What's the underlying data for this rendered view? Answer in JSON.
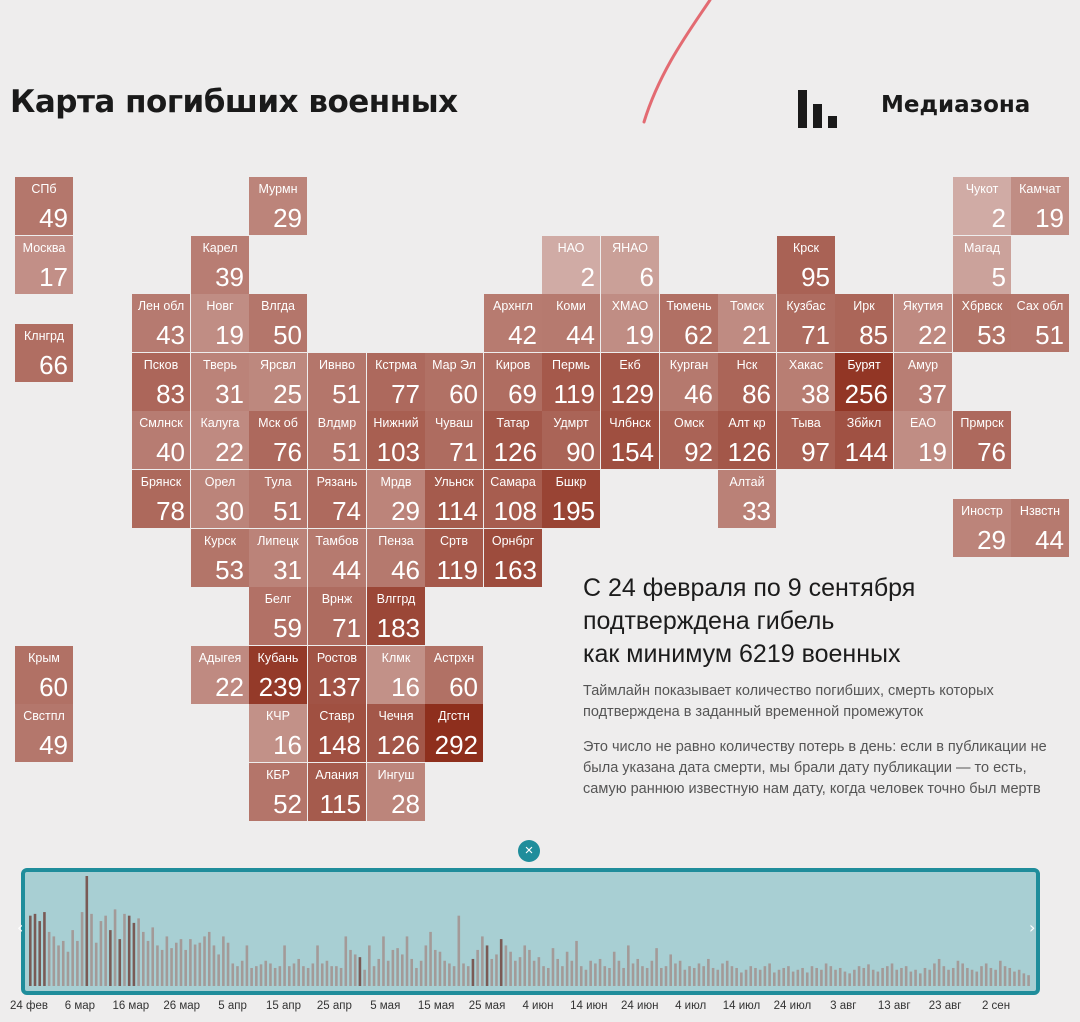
{
  "header": {
    "title": "Карта погибших военных",
    "brand": "Медиазона"
  },
  "colors": {
    "background": "#eeeded",
    "scale_low": "#dcc1bd",
    "scale_high": "#8e2f1d",
    "timeline_fill": "#a8cfd3",
    "timeline_border": "#1f8d9b"
  },
  "map": {
    "value_scale_max": 292,
    "regions": [
      {
        "label": "СПб",
        "value": 49,
        "col": 0,
        "row": 0
      },
      {
        "label": "Мурмн",
        "value": 29,
        "col": 4,
        "row": 0
      },
      {
        "label": "Чукот",
        "value": 2,
        "col": 16,
        "row": 0
      },
      {
        "label": "Камчат",
        "value": 19,
        "col": 17,
        "row": 0
      },
      {
        "label": "Москва",
        "value": 17,
        "col": 0,
        "row": 1
      },
      {
        "label": "Карел",
        "value": 39,
        "col": 3,
        "row": 1
      },
      {
        "label": "НАО",
        "value": 2,
        "col": 9,
        "row": 1
      },
      {
        "label": "ЯНАО",
        "value": 6,
        "col": 10,
        "row": 1
      },
      {
        "label": "Крск",
        "value": 95,
        "col": 13,
        "row": 1
      },
      {
        "label": "Магад",
        "value": 5,
        "col": 16,
        "row": 1
      },
      {
        "label": "Лен обл",
        "value": 43,
        "col": 2,
        "row": 2
      },
      {
        "label": "Новг",
        "value": 19,
        "col": 3,
        "row": 2
      },
      {
        "label": "Влгда",
        "value": 50,
        "col": 4,
        "row": 2
      },
      {
        "label": "Архнгл",
        "value": 42,
        "col": 8,
        "row": 2
      },
      {
        "label": "Коми",
        "value": 44,
        "col": 9,
        "row": 2
      },
      {
        "label": "ХМАО",
        "value": 19,
        "col": 10,
        "row": 2
      },
      {
        "label": "Тюмень",
        "value": 62,
        "col": 11,
        "row": 2
      },
      {
        "label": "Томск",
        "value": 21,
        "col": 12,
        "row": 2
      },
      {
        "label": "Кузбас",
        "value": 71,
        "col": 13,
        "row": 2
      },
      {
        "label": "Ирк",
        "value": 85,
        "col": 14,
        "row": 2
      },
      {
        "label": "Якутия",
        "value": 22,
        "col": 15,
        "row": 2
      },
      {
        "label": "Хбрвск",
        "value": 53,
        "col": 16,
        "row": 2
      },
      {
        "label": "Сах обл",
        "value": 51,
        "col": 17,
        "row": 2
      },
      {
        "label": "Клнгрд",
        "value": 66,
        "col": 0,
        "row": 2.5
      },
      {
        "label": "Псков",
        "value": 83,
        "col": 2,
        "row": 3
      },
      {
        "label": "Тверь",
        "value": 31,
        "col": 3,
        "row": 3
      },
      {
        "label": "Ярсвл",
        "value": 25,
        "col": 4,
        "row": 3
      },
      {
        "label": "Ивнво",
        "value": 51,
        "col": 5,
        "row": 3
      },
      {
        "label": "Кстрма",
        "value": 77,
        "col": 6,
        "row": 3
      },
      {
        "label": "Мар Эл",
        "value": 60,
        "col": 7,
        "row": 3
      },
      {
        "label": "Киров",
        "value": 69,
        "col": 8,
        "row": 3
      },
      {
        "label": "Пермь",
        "value": 119,
        "col": 9,
        "row": 3
      },
      {
        "label": "Екб",
        "value": 129,
        "col": 10,
        "row": 3
      },
      {
        "label": "Курган",
        "value": 46,
        "col": 11,
        "row": 3
      },
      {
        "label": "Нск",
        "value": 86,
        "col": 12,
        "row": 3
      },
      {
        "label": "Хакас",
        "value": 38,
        "col": 13,
        "row": 3
      },
      {
        "label": "Бурят",
        "value": 256,
        "col": 14,
        "row": 3
      },
      {
        "label": "Амур",
        "value": 37,
        "col": 15,
        "row": 3
      },
      {
        "label": "Смлнск",
        "value": 40,
        "col": 2,
        "row": 4
      },
      {
        "label": "Калуга",
        "value": 22,
        "col": 3,
        "row": 4
      },
      {
        "label": "Мск об",
        "value": 76,
        "col": 4,
        "row": 4
      },
      {
        "label": "Влдмр",
        "value": 51,
        "col": 5,
        "row": 4
      },
      {
        "label": "Нижний",
        "value": 103,
        "col": 6,
        "row": 4
      },
      {
        "label": "Чуваш",
        "value": 71,
        "col": 7,
        "row": 4
      },
      {
        "label": "Татар",
        "value": 126,
        "col": 8,
        "row": 4
      },
      {
        "label": "Удмрт",
        "value": 90,
        "col": 9,
        "row": 4
      },
      {
        "label": "Члбнск",
        "value": 154,
        "col": 10,
        "row": 4
      },
      {
        "label": "Омск",
        "value": 92,
        "col": 11,
        "row": 4
      },
      {
        "label": "Алт кр",
        "value": 126,
        "col": 12,
        "row": 4
      },
      {
        "label": "Тыва",
        "value": 97,
        "col": 13,
        "row": 4
      },
      {
        "label": "Збйкл",
        "value": 144,
        "col": 14,
        "row": 4
      },
      {
        "label": "ЕАО",
        "value": 19,
        "col": 15,
        "row": 4
      },
      {
        "label": "Прмрск",
        "value": 76,
        "col": 16,
        "row": 4
      },
      {
        "label": "Брянск",
        "value": 78,
        "col": 2,
        "row": 5
      },
      {
        "label": "Орел",
        "value": 30,
        "col": 3,
        "row": 5
      },
      {
        "label": "Тула",
        "value": 51,
        "col": 4,
        "row": 5
      },
      {
        "label": "Рязань",
        "value": 74,
        "col": 5,
        "row": 5
      },
      {
        "label": "Мрдв",
        "value": 29,
        "col": 6,
        "row": 5
      },
      {
        "label": "Ульнск",
        "value": 114,
        "col": 7,
        "row": 5
      },
      {
        "label": "Самара",
        "value": 108,
        "col": 8,
        "row": 5
      },
      {
        "label": "Бшкр",
        "value": 195,
        "col": 9,
        "row": 5
      },
      {
        "label": "Алтай",
        "value": 33,
        "col": 12,
        "row": 5
      },
      {
        "label": "Иностр",
        "value": 29,
        "col": 16,
        "row": 5.5
      },
      {
        "label": "Нзвстн",
        "value": 44,
        "col": 17,
        "row": 5.5
      },
      {
        "label": "Курск",
        "value": 53,
        "col": 3,
        "row": 6
      },
      {
        "label": "Липецк",
        "value": 31,
        "col": 4,
        "row": 6
      },
      {
        "label": "Тамбов",
        "value": 44,
        "col": 5,
        "row": 6
      },
      {
        "label": "Пенза",
        "value": 46,
        "col": 6,
        "row": 6
      },
      {
        "label": "Сртв",
        "value": 119,
        "col": 7,
        "row": 6
      },
      {
        "label": "Орнбрг",
        "value": 163,
        "col": 8,
        "row": 6
      },
      {
        "label": "Белг",
        "value": 59,
        "col": 4,
        "row": 7
      },
      {
        "label": "Врнж",
        "value": 71,
        "col": 5,
        "row": 7
      },
      {
        "label": "Влггрд",
        "value": 183,
        "col": 6,
        "row": 7
      },
      {
        "label": "Крым",
        "value": 60,
        "col": 0,
        "row": 8
      },
      {
        "label": "Адыгея",
        "value": 22,
        "col": 3,
        "row": 8
      },
      {
        "label": "Кубань",
        "value": 239,
        "col": 4,
        "row": 8
      },
      {
        "label": "Ростов",
        "value": 137,
        "col": 5,
        "row": 8
      },
      {
        "label": "Клмк",
        "value": 16,
        "col": 6,
        "row": 8
      },
      {
        "label": "Астрхн",
        "value": 60,
        "col": 7,
        "row": 8
      },
      {
        "label": "Свстпл",
        "value": 49,
        "col": 0,
        "row": 9
      },
      {
        "label": "КЧР",
        "value": 16,
        "col": 4,
        "row": 9
      },
      {
        "label": "Ставр",
        "value": 148,
        "col": 5,
        "row": 9
      },
      {
        "label": "Чечня",
        "value": 126,
        "col": 6,
        "row": 9
      },
      {
        "label": "Дгстн",
        "value": 292,
        "col": 7,
        "row": 9
      },
      {
        "label": "КБР",
        "value": 52,
        "col": 4,
        "row": 10
      },
      {
        "label": "Алания",
        "value": 115,
        "col": 5,
        "row": 10
      },
      {
        "label": "Ингуш",
        "value": 28,
        "col": 6,
        "row": 10
      }
    ]
  },
  "summary": {
    "headline_line1": "С 24 февраля по 9 сентября",
    "headline_line2": "подтверждена гибель",
    "headline_line3": "как минимум 6219 военных",
    "note1": "Таймлайн показывает количество погибших, смерть которых подтверждена в заданный временной промежуток",
    "note2": "Это число не равно количеству потерь в день: если в публикации не была указана дата смерти, мы брали дату публикации — то есть, самую раннюю известную нам дату, когда человек точно был мертв"
  },
  "timeline": {
    "close_icon": "×",
    "arrow_left": "‹",
    "arrow_right": "›",
    "ticks": [
      "24 фев",
      "6 мар",
      "16 мар",
      "26 мар",
      "5 апр",
      "15 апр",
      "25 апр",
      "5 мая",
      "15 мая",
      "25 мая",
      "4 июн",
      "14 июн",
      "24 июн",
      "4 июл",
      "14 июл",
      "24 июл",
      "3 авг",
      "13 авг",
      "23 авг",
      "2 сен"
    ],
    "daily_values": [
      78,
      80,
      72,
      82,
      60,
      55,
      45,
      50,
      38,
      62,
      50,
      82,
      122,
      80,
      48,
      72,
      78,
      62,
      85,
      52,
      80,
      78,
      70,
      75,
      60,
      50,
      65,
      45,
      40,
      55,
      42,
      48,
      52,
      40,
      52,
      46,
      48,
      55,
      60,
      45,
      35,
      55,
      48,
      25,
      22,
      28,
      45,
      20,
      22,
      24,
      28,
      25,
      20,
      22,
      45,
      22,
      25,
      30,
      22,
      20,
      25,
      45,
      25,
      28,
      22,
      22,
      20,
      55,
      40,
      35,
      32,
      18,
      45,
      22,
      30,
      55,
      28,
      40,
      42,
      35,
      55,
      30,
      20,
      28,
      45,
      60,
      40,
      38,
      28,
      25,
      22,
      78,
      25,
      22,
      30,
      40,
      55,
      45,
      30,
      35,
      52,
      45,
      38,
      28,
      32,
      45,
      40,
      28,
      32,
      22,
      20,
      42,
      30,
      22,
      38,
      28,
      50,
      22,
      18,
      28,
      25,
      30,
      22,
      20,
      38,
      28,
      20,
      45,
      25,
      30,
      22,
      20,
      28,
      42,
      20,
      22,
      35,
      25,
      28,
      18,
      22,
      20,
      25,
      22,
      30,
      20,
      18,
      25,
      28,
      22,
      20,
      15,
      18,
      22,
      20,
      18,
      22,
      25,
      15,
      18,
      20,
      22,
      16,
      18,
      20,
      15,
      22,
      20,
      18,
      25,
      22,
      18,
      20,
      16,
      14,
      18,
      22,
      20,
      24,
      18,
      16,
      20,
      22,
      25,
      18,
      20,
      22,
      16,
      18,
      14,
      20,
      18,
      25,
      30,
      22,
      18,
      20,
      28,
      25,
      20,
      18,
      16,
      22,
      25,
      20,
      18,
      28,
      22,
      20,
      16,
      18,
      14,
      12
    ],
    "highlighted_days": [
      0,
      1,
      2,
      3,
      12,
      17,
      19,
      21,
      22,
      70,
      94,
      97,
      100
    ]
  }
}
